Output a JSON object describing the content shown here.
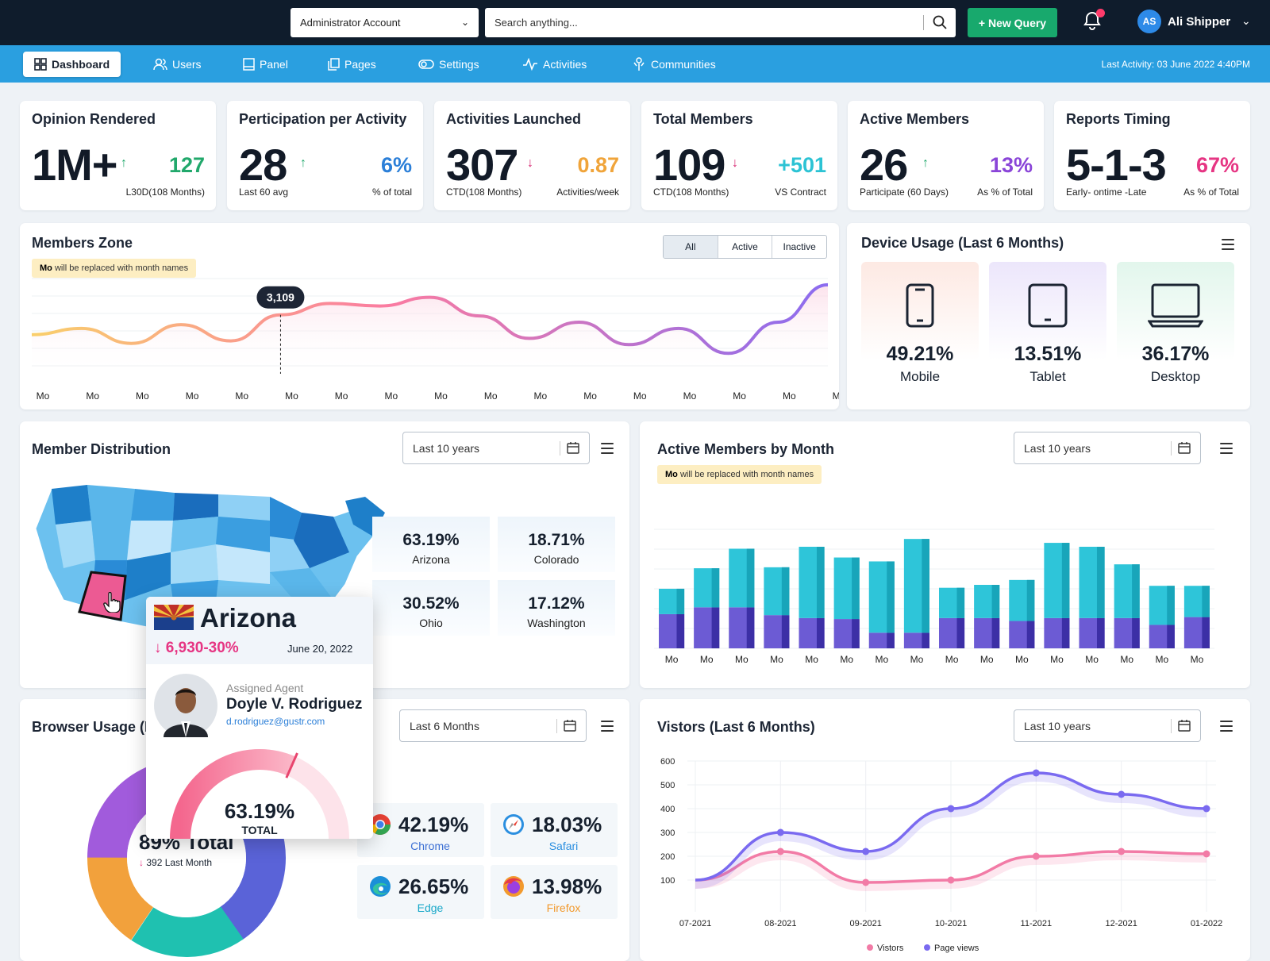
{
  "topbar": {
    "account_select": "Administrator Account",
    "search_placeholder": "Search anything...",
    "new_query_label": "+ New Query",
    "user_initials": "AS",
    "user_name": "Ali Shipper"
  },
  "nav": {
    "items": [
      {
        "label": "Dashboard",
        "icon": "grid-icon"
      },
      {
        "label": "Users",
        "icon": "users-icon"
      },
      {
        "label": "Panel",
        "icon": "panel-icon"
      },
      {
        "label": "Pages",
        "icon": "pages-icon"
      },
      {
        "label": "Settings",
        "icon": "toggle-icon"
      },
      {
        "label": "Activities",
        "icon": "activity-icon"
      },
      {
        "label": "Communities",
        "icon": "community-icon"
      }
    ],
    "last_activity": "Last Activity: 03 June 2022 4:40PM"
  },
  "kpis": [
    {
      "title": "Opinion Rendered",
      "big": "1M+",
      "trend": "up",
      "value": "127",
      "value_color": "#21a86b",
      "sub1": "",
      "sub2": "L30D(108 Months)"
    },
    {
      "title": "Perticipation per Activity",
      "big": "28",
      "trend": "up",
      "value": "6%",
      "value_color": "#2b7fd8",
      "sub1": "Last 60 avg",
      "sub2": "% of total"
    },
    {
      "title": "Activities Launched",
      "big": "307",
      "trend": "down",
      "value": "0.87",
      "value_color": "#f0a43a",
      "sub1": "CTD(108 Months)",
      "sub2": "Activities/week"
    },
    {
      "title": "Total Members",
      "big": "109",
      "trend": "down",
      "value": "+501",
      "value_color": "#2cc3d4",
      "sub1": "CTD(108 Months)",
      "sub2": "VS Contract"
    },
    {
      "title": "Active Members",
      "big": "26",
      "trend": "up",
      "value": "13%",
      "value_color": "#8a45d8",
      "sub1": "Participate (60 Days)",
      "sub2": "As % of Total"
    },
    {
      "title": "Reports Timing",
      "big": "5-1-3",
      "trend": "",
      "value": "67%",
      "value_color": "#e63583",
      "sub1": "Early- ontime -Late",
      "sub2": "As % of Total"
    }
  ],
  "members_zone": {
    "title": "Members Zone",
    "note_bold": "Mo",
    "note_text": " will be replaced with month names",
    "filters": [
      "All",
      "Active",
      "Inactive"
    ],
    "tooltip": "3,109",
    "x_labels": [
      "Mo",
      "Mo",
      "Mo",
      "Mo",
      "Mo",
      "Mo",
      "Mo",
      "Mo",
      "Mo",
      "Mo",
      "Mo",
      "Mo",
      "Mo",
      "Mo",
      "Mo",
      "Mo",
      "Mo"
    ],
    "values": [
      2950,
      3000,
      2880,
      3030,
      2900,
      3109,
      3200,
      3180,
      3250,
      3100,
      2920,
      3050,
      2870,
      3000,
      2800,
      3050,
      3350
    ]
  },
  "device_usage": {
    "title": "Device Usage (Last 6 Months)",
    "items": [
      {
        "value": "49.21%",
        "label": "Mobile",
        "icon": "mobile-icon"
      },
      {
        "value": "13.51%",
        "label": "Tablet",
        "icon": "tablet-icon"
      },
      {
        "value": "36.17%",
        "label": "Desktop",
        "icon": "desktop-icon"
      }
    ]
  },
  "member_distribution": {
    "title": "Member Distribution",
    "range": "Last 10 years",
    "stats": [
      {
        "value": "63.19%",
        "label": "Arizona"
      },
      {
        "value": "18.71%",
        "label": "Colorado"
      },
      {
        "value": "30.52%",
        "label": "Ohio"
      },
      {
        "value": "17.12%",
        "label": "Washington"
      }
    ]
  },
  "popup": {
    "state": "Arizona",
    "change": "6,930-30%",
    "date": "June 20, 2022",
    "agent_label": "Assigned Agent",
    "agent_name": "Doyle V. Rodriguez",
    "agent_email": "d.rodriguez@gustr.com",
    "gauge_value": "63.19%",
    "gauge_label": "TOTAL",
    "gauge_fraction": 0.6319
  },
  "active_members": {
    "title": "Active Members by Month",
    "note_bold": "Mo",
    "note_text": " will be replaced with month names",
    "range": "Last 10 years",
    "chart_data": {
      "type": "bar",
      "categories": [
        "Mo",
        "Mo",
        "Mo",
        "Mo",
        "Mo",
        "Mo",
        "Mo",
        "Mo",
        "Mo",
        "Mo",
        "Mo",
        "Mo",
        "Mo",
        "Mo",
        "Mo",
        "Mo"
      ],
      "series": [
        {
          "values": [
            35,
            42,
            42,
            34,
            31,
            30,
            16,
            16,
            31,
            31,
            28,
            31,
            31,
            31,
            24,
            32
          ],
          "color": "#6c5bd4"
        },
        {
          "values": [
            26,
            40,
            60,
            49,
            73,
            63,
            73,
            96,
            31,
            34,
            42,
            77,
            73,
            55,
            40,
            32
          ],
          "color": "#2ec5d9"
        }
      ]
    }
  },
  "browser_usage": {
    "title": "Browser Usage (Last 6 Months)",
    "range": "Last 6 Months",
    "total_text": "89% Total",
    "last_month": "392 Last Month",
    "items": [
      {
        "value": "42.19%",
        "label": "Chrome",
        "color": "#3b6fd4",
        "icon": "chrome-icon"
      },
      {
        "value": "18.03%",
        "label": "Safari",
        "color": "#2b8fe0",
        "icon": "safari-icon"
      },
      {
        "value": "26.65%",
        "label": "Edge",
        "color": "#18a8c9",
        "icon": "edge-icon"
      },
      {
        "value": "13.98%",
        "label": "Firefox",
        "color": "#f29a2e",
        "icon": "firefox-icon"
      }
    ]
  },
  "visitors": {
    "title": "Vistors (Last 6 Months)",
    "range": "Last 10 years",
    "chart_data": {
      "type": "line",
      "x": [
        "07-2021",
        "08-2021",
        "09-2021",
        "10-2021",
        "11-2021",
        "12-2021",
        "01-2022"
      ],
      "ylim": [
        0,
        600
      ],
      "yticks": [
        100,
        200,
        300,
        400,
        500,
        600
      ],
      "series": [
        {
          "name": "Vistors",
          "color": "#f27ba6",
          "values": [
            100,
            220,
            90,
            100,
            200,
            220,
            210
          ]
        },
        {
          "name": "Page views",
          "color": "#7a6af0",
          "values": [
            100,
            300,
            220,
            400,
            550,
            460,
            400
          ]
        }
      ]
    }
  }
}
